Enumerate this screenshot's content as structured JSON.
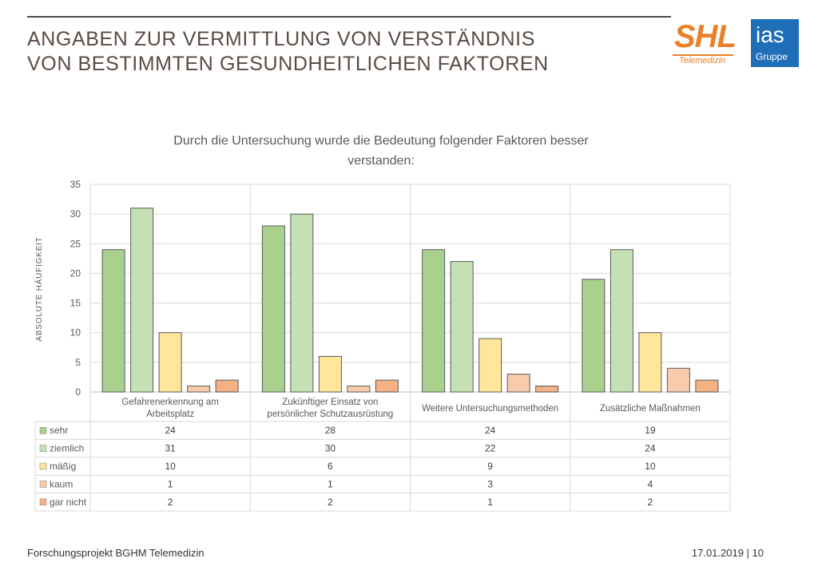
{
  "header": {
    "title_line1": "ANGABEN ZUR VERMITTLUNG VON VERSTÄNDNIS",
    "title_line2": "VON BESTIMMTEN GESUNDHEITLICHEN FAKTOREN",
    "logo_shl_text": "SHL",
    "logo_shl_sub": "Telemedizin",
    "logo_ias_text": "ias",
    "logo_ias_sub": "Gruppe"
  },
  "chart_data": {
    "type": "bar",
    "title_line1": "Durch die Untersuchung wurde die Bedeutung folgender Faktoren besser",
    "title_line2": "verstanden:",
    "ylabel": "ABSOLUTE HÄUFIGKEIT",
    "ylim": [
      0,
      35
    ],
    "yticks": [
      0,
      5,
      10,
      15,
      20,
      25,
      30,
      35
    ],
    "grid": true,
    "categories": [
      [
        "Gefahrenerkennung am",
        "Arbeitsplatz"
      ],
      [
        "Zukünftiger Einsatz von",
        "persönlicher Schutzausrüstung"
      ],
      [
        "Weitere Untersuchungsmethoden"
      ],
      [
        "Zusätzliche Maßnahmen"
      ]
    ],
    "series": [
      {
        "name": "sehr",
        "color": "#a9d18e",
        "values": [
          24,
          28,
          24,
          19
        ]
      },
      {
        "name": "ziemlich",
        "color": "#c5e0b4",
        "values": [
          31,
          30,
          22,
          24
        ]
      },
      {
        "name": "mäßig",
        "color": "#ffe699",
        "values": [
          10,
          6,
          9,
          10
        ]
      },
      {
        "name": "kaum",
        "color": "#f8cbad",
        "values": [
          1,
          1,
          3,
          4
        ]
      },
      {
        "name": "gar nicht",
        "color": "#f4b183",
        "values": [
          2,
          2,
          1,
          2
        ]
      }
    ]
  },
  "footer": {
    "left": "Forschungsprojekt BGHM Telemedizin",
    "right": "17.01.2019 | 10"
  }
}
